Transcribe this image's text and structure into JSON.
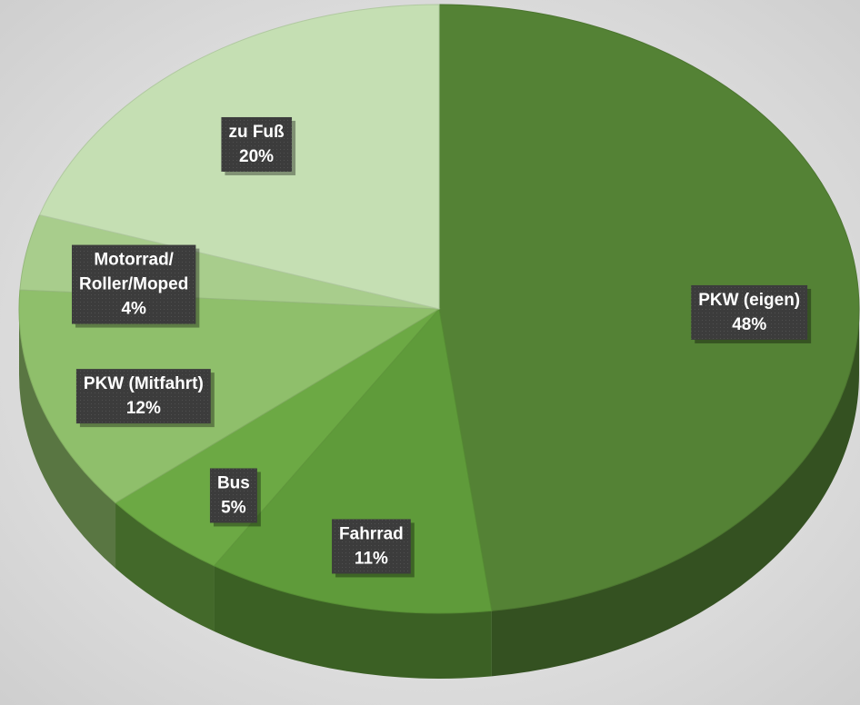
{
  "chart_data": {
    "type": "pie",
    "categories": [
      "PKW (eigen)",
      "Fahrrad",
      "Bus",
      "PKW (Mitfahrt)",
      "Motorrad/Roller/Moped",
      "zu Fuß"
    ],
    "values": [
      48,
      11,
      5,
      12,
      4,
      20
    ],
    "value_labels": [
      "48%",
      "11%",
      "5%",
      "12%",
      "4%",
      "20%"
    ],
    "colors": [
      "#548235",
      "#5f9b3a",
      "#6ca944",
      "#8fbf6b",
      "#a8cd8c",
      "#c5dfb3"
    ]
  }
}
